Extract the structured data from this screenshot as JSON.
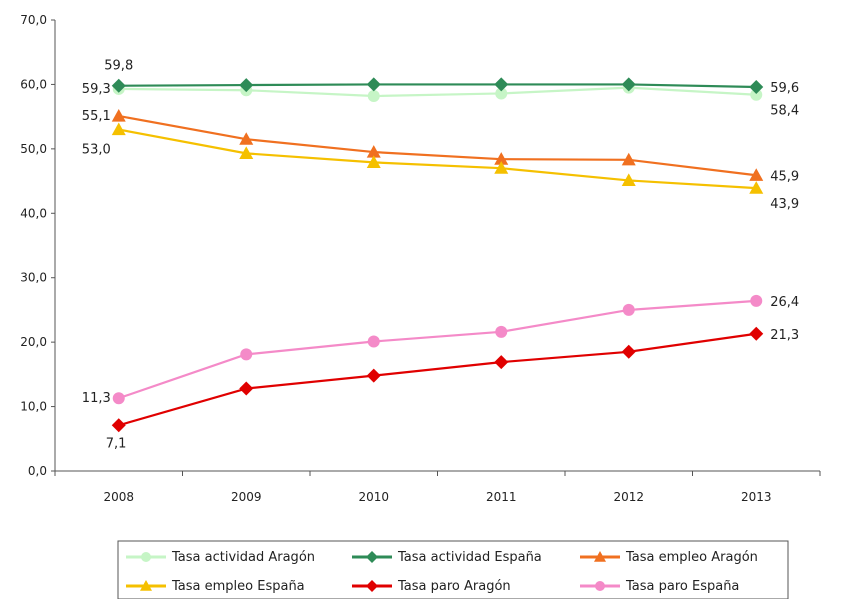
{
  "chart_data": {
    "type": "line",
    "categories": [
      "2008",
      "2009",
      "2010",
      "2011",
      "2012",
      "2013"
    ],
    "ylim": [
      0,
      70
    ],
    "yticks": [
      "0,0",
      "10,0",
      "20,0",
      "30,0",
      "40,0",
      "50,0",
      "60,0",
      "70,0"
    ],
    "grid": false,
    "legend_position": "bottom",
    "series": [
      {
        "name": "Tasa actividad Aragón",
        "color": "#c6f5c6",
        "marker": "circle",
        "values": [
          59.3,
          59.1,
          58.2,
          58.6,
          59.5,
          58.4
        ]
      },
      {
        "name": "Tasa actividad España",
        "color": "#2e8b57",
        "marker": "diamond",
        "values": [
          59.8,
          59.9,
          60.0,
          60.0,
          60.0,
          59.6
        ]
      },
      {
        "name": "Tasa empleo Aragón",
        "color": "#f07020",
        "marker": "triangle",
        "values": [
          55.1,
          51.5,
          49.5,
          48.4,
          48.3,
          45.9
        ]
      },
      {
        "name": "Tasa empleo España",
        "color": "#f5c000",
        "marker": "triangle",
        "values": [
          53.0,
          49.3,
          47.9,
          47.0,
          45.1,
          43.9
        ]
      },
      {
        "name": "Tasa paro Aragón",
        "color": "#e00000",
        "marker": "diamond",
        "values": [
          7.1,
          12.8,
          14.8,
          16.9,
          18.5,
          21.3
        ]
      },
      {
        "name": "Tasa paro España",
        "color": "#f48ac8",
        "marker": "circle",
        "values": [
          11.3,
          18.1,
          20.1,
          21.6,
          25.0,
          26.4
        ]
      }
    ],
    "data_labels": [
      {
        "text": "59,8",
        "series": 1,
        "index": 0,
        "pos": "above"
      },
      {
        "text": "59,3",
        "series": 0,
        "index": 0,
        "pos": "left"
      },
      {
        "text": "55,1",
        "series": 2,
        "index": 0,
        "pos": "left"
      },
      {
        "text": "53,0",
        "series": 3,
        "index": 0,
        "pos": "below-left"
      },
      {
        "text": "59,6",
        "series": 1,
        "index": 5,
        "pos": "right"
      },
      {
        "text": "58,4",
        "series": 0,
        "index": 5,
        "pos": "right-below"
      },
      {
        "text": "45,9",
        "series": 2,
        "index": 5,
        "pos": "right"
      },
      {
        "text": "43,9",
        "series": 3,
        "index": 5,
        "pos": "right-below"
      },
      {
        "text": "26,4",
        "series": 5,
        "index": 5,
        "pos": "right"
      },
      {
        "text": "21,3",
        "series": 4,
        "index": 5,
        "pos": "right"
      },
      {
        "text": "11,3",
        "series": 5,
        "index": 0,
        "pos": "left"
      },
      {
        "text": "7,1",
        "series": 4,
        "index": 0,
        "pos": "below"
      }
    ]
  }
}
